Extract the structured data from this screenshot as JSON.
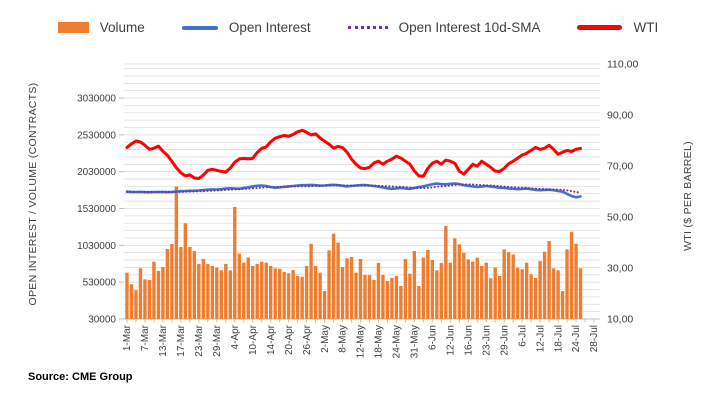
{
  "legend": {
    "items": [
      {
        "label": "Volume",
        "color": "#ED7D31",
        "marker": "bar"
      },
      {
        "label": "Open Interest",
        "color": "#4472C4",
        "marker": "line"
      },
      {
        "label": "Open Interest 10d-SMA",
        "color": "#7030A0",
        "marker": "dotted-line"
      },
      {
        "label": "WTI",
        "color": "#FF0000",
        "marker": "line"
      }
    ]
  },
  "axes": {
    "left_title": "OPEN INTEREST / VOLUME (CONTRACTS)",
    "right_title": "WTI ($ PER BARREL)"
  },
  "source": "Source: CME Group",
  "chart_data": {
    "type": "combo",
    "title": "",
    "legend_position": "top",
    "grid": "horizontal-minor-gridlines",
    "n_points": 102,
    "x_tick_interval": 4,
    "x_tick_labels": [
      "1-Mar",
      "7-Mar",
      "13-Mar",
      "17-Mar",
      "23-Mar",
      "29-Mar",
      "4-Apr",
      "10-Apr",
      "14-Apr",
      "20-Apr",
      "26-Apr",
      "2-May",
      "8-May",
      "12-May",
      "18-May",
      "24-May",
      "31-May",
      "6-Jun",
      "12-Jun",
      "16-Jun",
      "23-Jun",
      "29-Jun",
      "6-Jul",
      "12-Jul",
      "18-Jul",
      "24-Jul",
      "28-Jul"
    ],
    "left_axis": {
      "label": "OPEN INTEREST / VOLUME (CONTRACTS)",
      "min": 30000,
      "major_unit": 500000,
      "minor_unit": 100000,
      "tick_values": [
        3030000,
        2530000,
        2030000,
        1530000,
        1030000,
        530000,
        30000
      ]
    },
    "right_axis": {
      "label": "WTI ($ PER BARREL)",
      "min": 10,
      "max": 110,
      "major_unit": 20,
      "ticks": [
        {
          "value": 110,
          "label": "110,00"
        },
        {
          "value": 90,
          "label": "90,00"
        },
        {
          "value": 70,
          "label": "70,00"
        },
        {
          "value": 50,
          "label": "50,00"
        },
        {
          "value": 30,
          "label": "30,00"
        },
        {
          "value": 10,
          "label": "10,00"
        }
      ]
    },
    "series": [
      {
        "name": "Volume",
        "type": "bar",
        "axis": "left",
        "unit": "contracts",
        "color": "#ED7D31",
        "values": [
          659000,
          501000,
          420000,
          718000,
          569000,
          560000,
          808000,
          682000,
          736000,
          980000,
          1048000,
          1830000,
          1007000,
          1330000,
          1007000,
          953000,
          776000,
          845000,
          776000,
          750000,
          727000,
          690000,
          777000,
          690000,
          1550000,
          917000,
          795000,
          863000,
          750000,
          777000,
          808000,
          795000,
          750000,
          718000,
          713000,
          668000,
          650000,
          695000,
          614000,
          604000,
          750000,
          1052000,
          750000,
          659000,
          410000,
          962000,
          1188000,
          1066000,
          736000,
          854000,
          872000,
          659000,
          845000,
          628000,
          628000,
          560000,
          790000,
          628000,
          546000,
          587000,
          614000,
          478000,
          845000,
          645000,
          953000,
          478000,
          863000,
          967000,
          831000,
          690000,
          790000,
          1293000,
          795000,
          1125000,
          1044000,
          930000,
          840000,
          808000,
          863000,
          750000,
          795000,
          583000,
          727000,
          614000,
          975000,
          938000,
          906000,
          727000,
          705000,
          795000,
          637000,
          587000,
          817000,
          944000,
          1089000,
          718000,
          690000,
          410000,
          975000,
          1215000,
          1052000,
          718000
        ]
      },
      {
        "name": "Open Interest",
        "type": "line",
        "axis": "left",
        "unit": "contracts",
        "color": "#4472C4",
        "values": [
          1758000,
          1756000,
          1754000,
          1755000,
          1753000,
          1752000,
          1754000,
          1756000,
          1755000,
          1753000,
          1756000,
          1760000,
          1765000,
          1768000,
          1770000,
          1772000,
          1775000,
          1780000,
          1786000,
          1790000,
          1788000,
          1792000,
          1800000,
          1805000,
          1802000,
          1798000,
          1808000,
          1818000,
          1830000,
          1838000,
          1842000,
          1836000,
          1822000,
          1812000,
          1818000,
          1825000,
          1830000,
          1836000,
          1842000,
          1846000,
          1848000,
          1850000,
          1846000,
          1840000,
          1842000,
          1848000,
          1852000,
          1846000,
          1838000,
          1830000,
          1835000,
          1842000,
          1846000,
          1848000,
          1842000,
          1836000,
          1828000,
          1815000,
          1805000,
          1798000,
          1802000,
          1808000,
          1802000,
          1796000,
          1808000,
          1820000,
          1832000,
          1845000,
          1860000,
          1868000,
          1862000,
          1858000,
          1866000,
          1870000,
          1862000,
          1848000,
          1838000,
          1830000,
          1822000,
          1828000,
          1835000,
          1828000,
          1820000,
          1812000,
          1808000,
          1802000,
          1798000,
          1792000,
          1796000,
          1800000,
          1792000,
          1782000,
          1778000,
          1782000,
          1786000,
          1778000,
          1768000,
          1758000,
          1728000,
          1700000,
          1682000,
          1695000
        ]
      },
      {
        "name": "Open Interest 10d-SMA",
        "type": "line",
        "style": "dotted",
        "axis": "left",
        "unit": "contracts",
        "color": "#7030A0",
        "derived_from": "10-day trailing simple moving average of Open Interest"
      },
      {
        "name": "WTI",
        "type": "line",
        "axis": "right",
        "unit": "$ per barrel",
        "color": "#FF0000",
        "values": [
          77.3,
          78.7,
          79.8,
          79.4,
          78.1,
          76.5,
          77.0,
          77.8,
          75.8,
          74.2,
          71.8,
          69.3,
          67.3,
          66.1,
          66.5,
          65.3,
          65.1,
          66.4,
          68.3,
          68.7,
          68.3,
          67.9,
          67.6,
          69.2,
          71.5,
          72.8,
          73.0,
          72.8,
          73.0,
          75.3,
          76.9,
          77.5,
          79.5,
          80.9,
          81.5,
          82.0,
          81.6,
          82.4,
          83.4,
          84.0,
          83.2,
          82.2,
          82.6,
          81.0,
          79.7,
          78.5,
          77.0,
          77.7,
          77.2,
          75.4,
          72.7,
          70.7,
          69.2,
          69.0,
          69.5,
          71.2,
          71.9,
          70.7,
          71.9,
          72.7,
          73.9,
          73.1,
          71.9,
          70.7,
          68.0,
          66.1,
          66.0,
          69.1,
          71.1,
          71.9,
          70.7,
          72.3,
          71.9,
          71.1,
          68.0,
          66.8,
          68.7,
          70.7,
          69.9,
          71.9,
          70.7,
          69.5,
          68.0,
          67.9,
          69.1,
          70.9,
          71.9,
          73.1,
          74.3,
          75.0,
          76.1,
          77.3,
          76.5,
          77.0,
          78.1,
          76.5,
          74.6,
          75.4,
          76.1,
          75.7,
          76.5,
          76.9
        ]
      }
    ]
  }
}
